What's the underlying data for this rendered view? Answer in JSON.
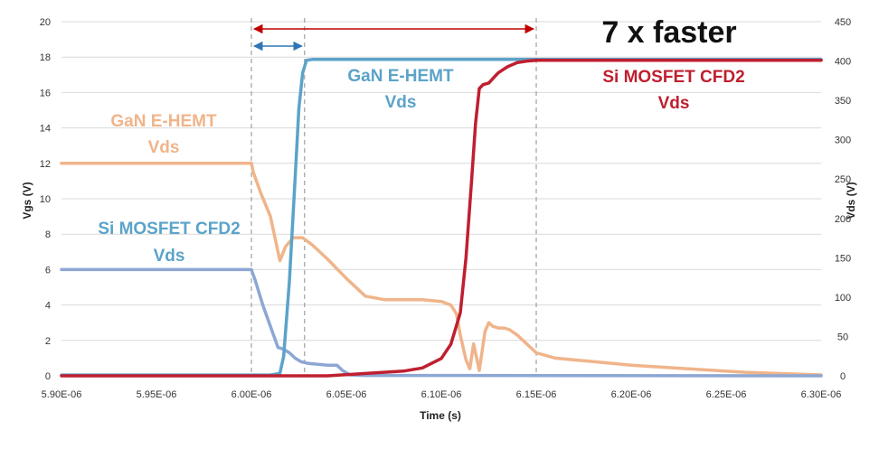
{
  "chart_data": {
    "type": "line",
    "title": "",
    "xlabel": "Time (s)",
    "ylabel_left": "Vgs (V)",
    "ylabel_right": "Vds (V)",
    "xlim": [
      5.9e-06,
      6.3e-06
    ],
    "ylim_left": [
      0,
      20
    ],
    "ylim_right": [
      0,
      450
    ],
    "grid": "horizontal",
    "legend": "none",
    "x_ticks": [
      "5.90E-06",
      "5.95E-06",
      "6.00E-06",
      "6.05E-06",
      "6.10E-06",
      "6.15E-06",
      "6.20E-06",
      "6.25E-06",
      "6.30E-06"
    ],
    "x_tick_values": [
      5.9e-06,
      5.95e-06,
      6e-06,
      6.05e-06,
      6.1e-06,
      6.15e-06,
      6.2e-06,
      6.25e-06,
      6.3e-06
    ],
    "y_left_ticks": [
      "0",
      "2",
      "4",
      "6",
      "8",
      "10",
      "12",
      "14",
      "16",
      "18",
      "20"
    ],
    "y_left_tick_values": [
      0,
      2,
      4,
      6,
      8,
      10,
      12,
      14,
      16,
      18,
      20
    ],
    "y_right_ticks": [
      "0",
      "50",
      "100",
      "150",
      "200",
      "250",
      "300",
      "350",
      "400",
      "450"
    ],
    "y_right_tick_values": [
      0,
      50,
      100,
      150,
      200,
      250,
      300,
      350,
      400,
      450
    ],
    "series": [
      {
        "color": "#f0b48a",
        "axis": "left",
        "x": [
          5.9e-06,
          6e-06,
          6.001e-06,
          6.005e-06,
          6.01e-06,
          6.015e-06,
          6.018e-06,
          6.022e-06,
          6.027e-06,
          6.032e-06,
          6.04e-06,
          6.05e-06,
          6.06e-06,
          6.07e-06,
          6.08e-06,
          6.09e-06,
          6.1e-06,
          6.105e-06,
          6.108e-06,
          6.11e-06,
          6.113e-06,
          6.115e-06,
          6.117e-06,
          6.12e-06,
          6.123e-06,
          6.125e-06,
          6.127e-06,
          6.13e-06,
          6.133e-06,
          6.136e-06,
          6.14e-06,
          6.15e-06,
          6.16e-06,
          6.18e-06,
          6.2e-06,
          6.23e-06,
          6.26e-06,
          6.3e-06
        ],
        "y": [
          12,
          12,
          11.5,
          10.3,
          9.0,
          6.5,
          7.3,
          7.8,
          7.8,
          7.4,
          6.6,
          5.5,
          4.5,
          4.3,
          4.3,
          4.3,
          4.2,
          4.0,
          3.5,
          2.3,
          0.9,
          0.4,
          1.8,
          0.3,
          2.5,
          3.0,
          2.8,
          2.7,
          2.7,
          2.6,
          2.3,
          1.3,
          1.0,
          0.8,
          0.6,
          0.4,
          0.2,
          0.05
        ]
      },
      {
        "color": "#8da7d3",
        "axis": "left",
        "x": [
          5.9e-06,
          6e-06,
          6.002e-06,
          6.006e-06,
          6.01e-06,
          6.014e-06,
          6.017e-06,
          6.02e-06,
          6.023e-06,
          6.026e-06,
          6.03e-06,
          6.035e-06,
          6.04e-06,
          6.045e-06,
          6.048e-06,
          6.052e-06,
          6.06e-06,
          6.3e-06
        ],
        "y": [
          6,
          6,
          5.4,
          4.0,
          2.8,
          1.6,
          1.5,
          1.3,
          1.0,
          0.8,
          0.7,
          0.65,
          0.6,
          0.6,
          0.3,
          0.05,
          0.02,
          0.0
        ]
      },
      {
        "color": "#5ba3c9",
        "axis": "right",
        "x": [
          5.9e-06,
          6.01e-06,
          6.015e-06,
          6.017e-06,
          6.02e-06,
          6.023e-06,
          6.025e-06,
          6.027e-06,
          6.029e-06,
          6.032e-06,
          6.3e-06
        ],
        "y": [
          1,
          1,
          3,
          25,
          120,
          250,
          340,
          385,
          401,
          402,
          402
        ]
      },
      {
        "color": "#bf1f2f",
        "axis": "right",
        "x": [
          5.9e-06,
          6.04e-06,
          6.06e-06,
          6.08e-06,
          6.09e-06,
          6.1e-06,
          6.105e-06,
          6.11e-06,
          6.113e-06,
          6.116e-06,
          6.118e-06,
          6.12e-06,
          6.122e-06,
          6.125e-06,
          6.128e-06,
          6.13e-06,
          6.135e-06,
          6.14e-06,
          6.145e-06,
          6.15e-06,
          6.3e-06
        ],
        "y": [
          0,
          0,
          3,
          6,
          10,
          22,
          40,
          80,
          150,
          250,
          320,
          365,
          370,
          372,
          380,
          385,
          393,
          398,
          400,
          401,
          401
        ]
      }
    ],
    "reference_lines": [
      6e-06,
      6.028e-06,
      6.15e-06
    ],
    "annotations": {
      "gan_vds_left": {
        "line1": "GaN E-HEMT",
        "line2": "Vds",
        "color": "#f0b48a"
      },
      "si_vds_left": {
        "line1": "Si MOSFET CFD2",
        "line2": "Vds",
        "color": "#5ba3c9"
      },
      "gan_vds_top": {
        "line1": "GaN E-HEMT",
        "line2": "Vds",
        "color": "#5ba3c9"
      },
      "si_vds_top": {
        "line1": "Si MOSFET CFD2",
        "line2": "Vds",
        "color": "#bf1f2f"
      },
      "speedup": {
        "text": "7 x faster",
        "color": "#111111"
      }
    },
    "arrows": {
      "short": {
        "from": 6e-06,
        "to": 6.028e-06,
        "color": "#2e75b6"
      },
      "long": {
        "from": 6e-06,
        "to": 6.15e-06,
        "color": "#c00000"
      }
    }
  }
}
